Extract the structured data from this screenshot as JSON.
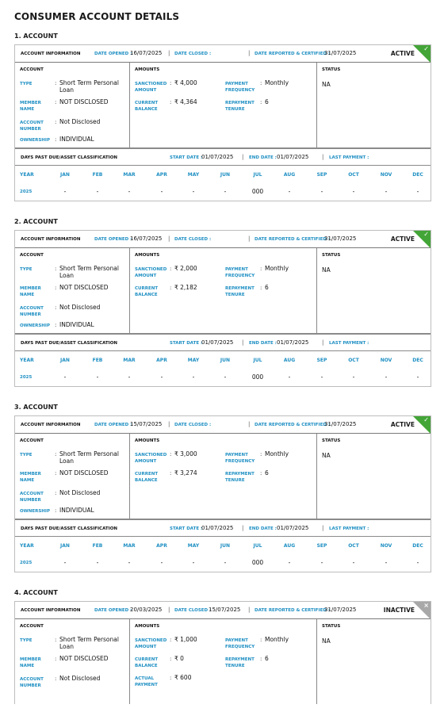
{
  "page_title": "CONSUMER ACCOUNT DETAILS",
  "labels": {
    "account_information": "ACCOUNT INFORMATION",
    "date_opened": "DATE OPENED :",
    "date_closed": "DATE CLOSED :",
    "date_reported": "DATE REPORTED & CERTIFIED :",
    "account": "ACCOUNT",
    "amounts": "AMOUNTS",
    "status": "STATUS",
    "type": "TYPE",
    "member_name": "MEMBER NAME",
    "account_number": "ACCOUNT NUMBER",
    "ownership": "OWNERSHIP",
    "sanctioned_amount": "SANCTIONED AMOUNT",
    "current_balance": "CURRENT BALANCE",
    "actual_payment": "ACTUAL PAYMENT",
    "payment_frequency": "PAYMENT FREQUENCY",
    "repayment_tenure": "REPAYMENT TENURE",
    "dpd_title": "DAYS PAST DUE/ASSET CLASSIFICATION",
    "start_date": "START DATE :",
    "end_date": "END DATE :",
    "last_payment": "LAST PAYMENT :",
    "colon": ":",
    "sep": "|",
    "check_mark": "✓",
    "x_mark": "×"
  },
  "month_headers": [
    "YEAR",
    "JAN",
    "FEB",
    "MAR",
    "APR",
    "MAY",
    "JUN",
    "JUL",
    "AUG",
    "SEP",
    "OCT",
    "NOV",
    "DEC"
  ],
  "accounts": [
    {
      "title": "1. ACCOUNT",
      "date_opened": "16/07/2025",
      "date_closed": "",
      "date_reported": "31/07/2025",
      "state": "ACTIVE",
      "state_color": "#43a537",
      "type": "Short Term Personal Loan",
      "member_name": "NOT DISCLOSED",
      "account_number": "Not Disclosed",
      "ownership": "INDIVIDUAL",
      "sanctioned_amount": "₹ 4,000",
      "current_balance": "₹ 4,364",
      "payment_frequency": "Monthly",
      "repayment_tenure": "6",
      "status": "NA",
      "start_date": "01/07/2025",
      "end_date": "01/07/2025",
      "last_payment": "",
      "history": [
        "2025",
        "-",
        "-",
        "-",
        "-",
        "-",
        "-",
        "000",
        "-",
        "-",
        "-",
        "-",
        "-"
      ]
    },
    {
      "title": "2. ACCOUNT",
      "date_opened": "16/07/2025",
      "date_closed": "",
      "date_reported": "31/07/2025",
      "state": "ACTIVE",
      "state_color": "#43a537",
      "type": "Short Term Personal Loan",
      "member_name": "NOT DISCLOSED",
      "account_number": "Not Disclosed",
      "ownership": "INDIVIDUAL",
      "sanctioned_amount": "₹ 2,000",
      "current_balance": "₹ 2,182",
      "payment_frequency": "Monthly",
      "repayment_tenure": "6",
      "status": "NA",
      "start_date": "01/07/2025",
      "end_date": "01/07/2025",
      "last_payment": "",
      "history": [
        "2025",
        "-",
        "-",
        "-",
        "-",
        "-",
        "-",
        "000",
        "-",
        "-",
        "-",
        "-",
        "-"
      ]
    },
    {
      "title": "3. ACCOUNT",
      "date_opened": "15/07/2025",
      "date_closed": "",
      "date_reported": "31/07/2025",
      "state": "ACTIVE",
      "state_color": "#43a537",
      "type": "Short Term Personal Loan",
      "member_name": "NOT DISCLOSED",
      "account_number": "Not Disclosed",
      "ownership": "INDIVIDUAL",
      "sanctioned_amount": "₹ 3,000",
      "current_balance": "₹ 3,274",
      "payment_frequency": "Monthly",
      "repayment_tenure": "6",
      "status": "NA",
      "start_date": "01/07/2025",
      "end_date": "01/07/2025",
      "last_payment": "",
      "history": [
        "2025",
        "-",
        "-",
        "-",
        "-",
        "-",
        "-",
        "000",
        "-",
        "-",
        "-",
        "-",
        "-"
      ]
    },
    {
      "title": "4. ACCOUNT",
      "date_opened": "20/03/2025",
      "date_closed": "15/07/2025",
      "date_reported": "31/07/2025",
      "state": "INACTIVE",
      "state_color": "#a8a8a8",
      "type": "Short Term Personal Loan",
      "member_name": "NOT DISCLOSED",
      "account_number": "Not Disclosed",
      "sanctioned_amount": "₹ 1,000",
      "current_balance": "₹ 0",
      "actual_payment": "₹ 600",
      "payment_frequency": "Monthly",
      "repayment_tenure": "6",
      "status": "NA"
    }
  ]
}
